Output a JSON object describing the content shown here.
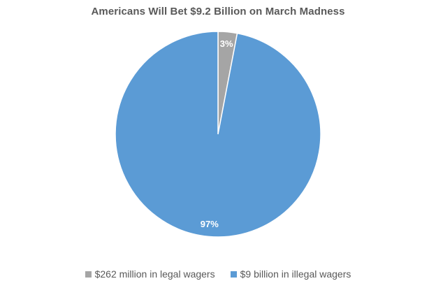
{
  "chart_data": {
    "type": "pie",
    "title": "Americans Will Bet $9.2 Billion on March Madness",
    "slices": [
      {
        "name": "$262 million in legal wagers",
        "value": 3,
        "label": "3%",
        "color": "#a5a5a5"
      },
      {
        "name": "$9 billion in illegal wagers",
        "value": 97,
        "label": "97%",
        "color": "#5b9bd5"
      }
    ],
    "legend_position": "bottom"
  }
}
